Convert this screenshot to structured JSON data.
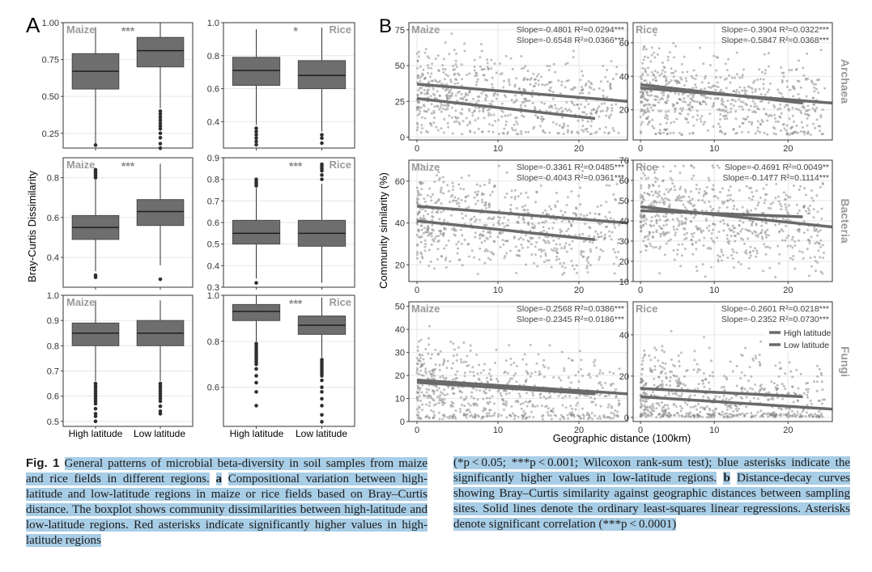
{
  "panel_labels": {
    "a": "A",
    "b": "B"
  },
  "panel_a": {
    "ylabel": "Bray-Curtis Dissimilarity",
    "categories": [
      "High latitude",
      "Low latitude"
    ],
    "crop_labels": {
      "maize": "Maize",
      "rice": "Rice"
    }
  },
  "panel_b": {
    "ylabel": "Community similarity (%)",
    "xlabel": "Geographic distance (100km)",
    "row_labels": [
      "Archaea",
      "Bacteria",
      "Fungi"
    ],
    "legend": [
      "High latitude",
      "Low latitude"
    ]
  },
  "caption": {
    "fig_label": "Fig. 1",
    "left_text": "General patterns of microbial beta-diversity in soil samples from maize and rice fields in different regions.",
    "a_label": "a",
    "a_text": "Compositional variation between high-latitude and low-latitude regions in maize or rice fields based on Bray–Curtis distance. The boxplot shows community dissimilarities between high-latitude and low-latitude regions. Red asterisks indicate significantly higher values in high-latitude regions",
    "right_pre": "(*p < 0.05; ***p < 0.001; Wilcoxon rank-sum test); blue asterisks indicate the significantly higher values in low-latitude regions.",
    "b_label": "b",
    "b_text": "Distance-decay curves showing Bray–Curtis similarity against geographic distances between sampling sites. Solid lines denote the ordinary least-squares linear regressions. Asterisks denote significant correlation (***p < 0.0001)"
  },
  "chart_data": [
    {
      "type": "box",
      "panel": "A-maize-1",
      "crop": "Maize",
      "sig": "***",
      "ylim": [
        0.15,
        1.0
      ],
      "yticks": [
        0.25,
        0.5,
        0.75,
        1.0
      ],
      "tick_labels": [
        "0.25",
        "0.50",
        "0.75",
        "1.00"
      ],
      "categories": [
        "High latitude",
        "Low latitude"
      ],
      "boxes": [
        {
          "min": 0.17,
          "q1": 0.55,
          "median": 0.67,
          "q3": 0.79,
          "max": 0.97,
          "outliers": [
            0.17
          ]
        },
        {
          "min": 0.42,
          "q1": 0.7,
          "median": 0.81,
          "q3": 0.9,
          "max": 1.0,
          "outliers": [
            0.4,
            0.38,
            0.36,
            0.34,
            0.32,
            0.3,
            0.28,
            0.25,
            0.22,
            0.18,
            0.15
          ]
        }
      ]
    },
    {
      "type": "box",
      "panel": "A-rice-1",
      "crop": "Rice",
      "sig": "*",
      "ylim": [
        0.24,
        1.0
      ],
      "yticks": [
        0.4,
        0.6,
        0.8,
        1.0
      ],
      "tick_labels": [
        "0.4",
        "0.6",
        "0.8",
        "1.0"
      ],
      "categories": [
        "High latitude",
        "Low latitude"
      ],
      "boxes": [
        {
          "min": 0.38,
          "q1": 0.62,
          "median": 0.71,
          "q3": 0.79,
          "max": 0.96,
          "outliers": [
            0.36,
            0.34,
            0.32,
            0.3,
            0.28,
            0.26
          ]
        },
        {
          "min": 0.34,
          "q1": 0.6,
          "median": 0.68,
          "q3": 0.77,
          "max": 0.97,
          "outliers": [
            0.32,
            0.3,
            0.27
          ]
        }
      ]
    },
    {
      "type": "box",
      "panel": "A-maize-2",
      "crop": "Maize",
      "sig": "***",
      "ylim": [
        0.25,
        0.9
      ],
      "yticks": [
        0.4,
        0.6,
        0.8
      ],
      "tick_labels": [
        "0.4",
        "0.6",
        "0.8"
      ],
      "categories": [
        "High latitude",
        "Low latitude"
      ],
      "boxes": [
        {
          "min": 0.33,
          "q1": 0.49,
          "median": 0.55,
          "q3": 0.61,
          "max": 0.79,
          "outliers": [
            0.84,
            0.83,
            0.82,
            0.81,
            0.8,
            0.31,
            0.3
          ]
        },
        {
          "min": 0.36,
          "q1": 0.56,
          "median": 0.63,
          "q3": 0.69,
          "max": 0.87,
          "outliers": [
            0.29
          ]
        }
      ]
    },
    {
      "type": "box",
      "panel": "A-rice-2",
      "crop": "Rice",
      "sig": "***",
      "ylim": [
        0.3,
        0.9
      ],
      "yticks": [
        0.3,
        0.4,
        0.5,
        0.6,
        0.7,
        0.8,
        0.9
      ],
      "tick_labels": [
        "0.3",
        "0.4",
        "0.5",
        "0.6",
        "0.7",
        "0.8",
        "0.9"
      ],
      "categories": [
        "High latitude",
        "Low latitude"
      ],
      "boxes": [
        {
          "min": 0.34,
          "q1": 0.5,
          "median": 0.55,
          "q3": 0.61,
          "max": 0.76,
          "outliers": [
            0.8,
            0.79,
            0.78,
            0.77,
            0.32
          ]
        },
        {
          "min": 0.32,
          "q1": 0.49,
          "median": 0.55,
          "q3": 0.61,
          "max": 0.78,
          "outliers": [
            0.87,
            0.86,
            0.85,
            0.84,
            0.82,
            0.8
          ]
        }
      ]
    },
    {
      "type": "box",
      "panel": "A-maize-3",
      "crop": "Maize",
      "sig": "",
      "ylim": [
        0.48,
        1.0
      ],
      "yticks": [
        0.5,
        0.6,
        0.7,
        0.8,
        0.9,
        1.0
      ],
      "tick_labels": [
        "0.5",
        "0.6",
        "0.7",
        "0.8",
        "0.9",
        "1.0"
      ],
      "categories": [
        "High latitude",
        "Low latitude"
      ],
      "boxes": [
        {
          "min": 0.66,
          "q1": 0.8,
          "median": 0.85,
          "q3": 0.89,
          "max": 0.98,
          "outliers": [
            0.65,
            0.64,
            0.63,
            0.62,
            0.61,
            0.6,
            0.59,
            0.58,
            0.57,
            0.55,
            0.53,
            0.52,
            0.5
          ]
        },
        {
          "min": 0.66,
          "q1": 0.8,
          "median": 0.85,
          "q3": 0.9,
          "max": 0.98,
          "outliers": [
            0.65,
            0.64,
            0.63,
            0.62,
            0.61,
            0.6,
            0.59,
            0.58,
            0.56,
            0.54,
            0.53
          ]
        }
      ]
    },
    {
      "type": "box",
      "panel": "A-rice-3",
      "crop": "Rice",
      "sig": "***",
      "ylim": [
        0.43,
        1.0
      ],
      "yticks": [
        0.6,
        0.8,
        1.0
      ],
      "tick_labels": [
        "0.6",
        "0.8",
        "1.0"
      ],
      "categories": [
        "High latitude",
        "Low latitude"
      ],
      "boxes": [
        {
          "min": 0.8,
          "q1": 0.89,
          "median": 0.93,
          "q3": 0.96,
          "max": 1.0,
          "outliers": [
            0.79,
            0.78,
            0.77,
            0.76,
            0.75,
            0.74,
            0.73,
            0.72,
            0.71,
            0.7,
            0.68,
            0.65,
            0.62,
            0.58,
            0.52
          ]
        },
        {
          "min": 0.73,
          "q1": 0.83,
          "median": 0.87,
          "q3": 0.91,
          "max": 0.99,
          "outliers": [
            0.72,
            0.71,
            0.7,
            0.69,
            0.68,
            0.67,
            0.66,
            0.65,
            0.63,
            0.6,
            0.58,
            0.55,
            0.52,
            0.48,
            0.45
          ]
        }
      ]
    },
    {
      "type": "scatter",
      "panel": "B-maize-archaea",
      "crop": "Maize",
      "xlim": [
        -1,
        26
      ],
      "xticks": [
        0,
        10,
        20
      ],
      "ylim": [
        -2,
        80
      ],
      "yticks": [
        0,
        25,
        50,
        75
      ],
      "stats": [
        "Slope=-0.4801  R²=0.0294***",
        "Slope=-0.6548  R²=0.0366***"
      ],
      "lines": [
        {
          "name": "High latitude",
          "x": [
            0,
            22
          ],
          "y": [
            27,
            13
          ]
        },
        {
          "name": "Low latitude",
          "x": [
            0,
            26
          ],
          "y": [
            37,
            25
          ]
        }
      ],
      "cloud": {
        "x": [
          0,
          25
        ],
        "y": [
          2,
          78
        ],
        "center": 30
      }
    },
    {
      "type": "scatter",
      "panel": "B-rice-archaea",
      "crop": "Rice",
      "row_label": "Archaea",
      "xlim": [
        -1,
        26
      ],
      "xticks": [
        0,
        10,
        20
      ],
      "ylim": [
        2,
        72
      ],
      "yticks": [
        20,
        40,
        60
      ],
      "stats": [
        "Slope=-0.3904  R²=0.0322***",
        "Slope=-0.5847  R²=0.0368***"
      ],
      "lines": [
        {
          "name": "High latitude",
          "x": [
            0,
            22
          ],
          "y": [
            35,
            24
          ]
        },
        {
          "name": "Low latitude",
          "x": [
            0,
            26
          ],
          "y": [
            33,
            24
          ]
        }
      ],
      "cloud": {
        "x": [
          0,
          25
        ],
        "y": [
          5,
          70
        ],
        "center": 30
      }
    },
    {
      "type": "scatter",
      "panel": "B-maize-bacteria",
      "crop": "Maize",
      "xlim": [
        -1,
        26
      ],
      "xticks": [
        0,
        10,
        20
      ],
      "ylim": [
        12,
        70
      ],
      "yticks": [
        20,
        40,
        60
      ],
      "stats": [
        "Slope=-0.3361  R²=0.0485***",
        "Slope=-0.4043  R²=0.0361***"
      ],
      "lines": [
        {
          "name": "High latitude",
          "x": [
            0,
            22
          ],
          "y": [
            41,
            32
          ]
        },
        {
          "name": "Low latitude",
          "x": [
            0,
            26
          ],
          "y": [
            48,
            40
          ]
        }
      ],
      "cloud": {
        "x": [
          0,
          25
        ],
        "y": [
          15,
          68
        ],
        "center": 43
      }
    },
    {
      "type": "scatter",
      "panel": "B-rice-bacteria",
      "crop": "Rice",
      "row_label": "Bacteria",
      "xlim": [
        -1,
        26
      ],
      "xticks": [
        0,
        10,
        20
      ],
      "ylim": [
        10,
        70
      ],
      "yticks": [
        10,
        20,
        30,
        40,
        50,
        60,
        70
      ],
      "stats": [
        "Slope=-0.4691  R²=0.0049**",
        "Slope=-0.1477  R²=0.1114***"
      ],
      "lines": [
        {
          "name": "High latitude",
          "x": [
            0,
            22
          ],
          "y": [
            45,
            42
          ]
        },
        {
          "name": "Low latitude",
          "x": [
            0,
            26
          ],
          "y": [
            47,
            37
          ]
        }
      ],
      "cloud": {
        "x": [
          0,
          25
        ],
        "y": [
          12,
          68
        ],
        "center": 45
      }
    },
    {
      "type": "scatter",
      "panel": "B-maize-fungi",
      "crop": "Maize",
      "xlim": [
        -1,
        26
      ],
      "xticks": [
        0,
        10,
        20
      ],
      "ylim": [
        0,
        52
      ],
      "yticks": [
        0,
        10,
        20,
        30,
        40,
        50
      ],
      "stats": [
        "Slope=-0.2568  R²=0.0386***",
        "Slope=-0.2345  R²=0.0186***"
      ],
      "lines": [
        {
          "name": "High latitude",
          "x": [
            0,
            22
          ],
          "y": [
            17,
            12
          ]
        },
        {
          "name": "Low latitude",
          "x": [
            0,
            26
          ],
          "y": [
            18,
            12
          ]
        }
      ],
      "cloud": {
        "x": [
          0,
          25
        ],
        "y": [
          1,
          50
        ],
        "center": 16
      }
    },
    {
      "type": "scatter",
      "panel": "B-rice-fungi",
      "crop": "Rice",
      "row_label": "Fungi",
      "xlim": [
        -1,
        26
      ],
      "xticks": [
        0,
        10,
        20
      ],
      "ylim": [
        -2,
        56
      ],
      "yticks": [
        0,
        20,
        40
      ],
      "stats": [
        "Slope=-0.2601  R²=0.0218***",
        "Slope=-0.2352  R²=0.0730***"
      ],
      "lines": [
        {
          "name": "High latitude",
          "x": [
            0,
            22
          ],
          "y": [
            14,
            10
          ]
        },
        {
          "name": "Low latitude",
          "x": [
            0,
            26
          ],
          "y": [
            10,
            4
          ]
        }
      ],
      "cloud": {
        "x": [
          0,
          25
        ],
        "y": [
          0,
          55
        ],
        "center": 12
      },
      "legend": true
    }
  ],
  "colors": {
    "box_fill": "#6e6e6e",
    "panel_border": "#333333",
    "grid": "#e6e6e6",
    "point": "#8a8a8a",
    "line": "#6a6a6a",
    "crop_label": "#9a9a9a",
    "strip_label": "#9a9a9a",
    "caption_highlight": "#a8cde6"
  }
}
